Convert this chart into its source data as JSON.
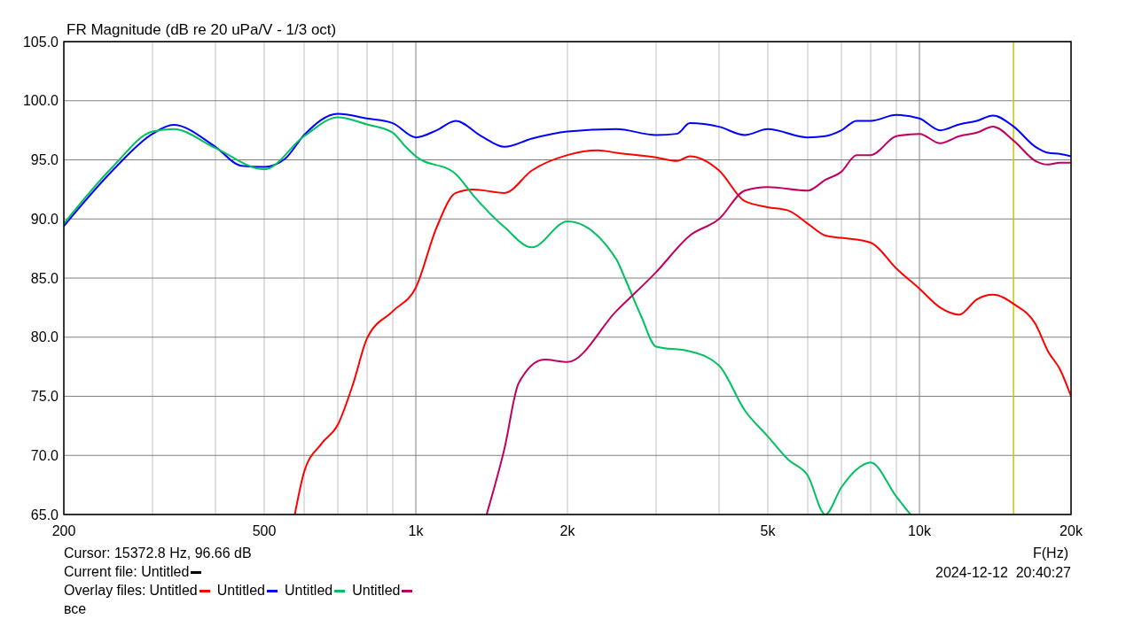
{
  "chart_data": {
    "type": "line",
    "title": "FR Magnitude (dB re 20 uPa/V - 1/3 oct)",
    "xlabel": "F(Hz)",
    "log": "x",
    "grid": true,
    "legend": "bottom",
    "legend_title": "Overlay files:",
    "line_style": "solid",
    "marker": "none",
    "xlim": [
      200,
      20000
    ],
    "xticks": [
      200,
      {
        "value": 300,
        "label": null
      },
      {
        "value": 400,
        "label": null
      },
      500,
      {
        "value": 600,
        "label": null
      },
      {
        "value": 700,
        "label": null
      },
      {
        "value": 800,
        "label": null
      },
      {
        "value": 900,
        "label": null
      },
      {
        "value": 1000,
        "label": "1k"
      },
      {
        "value": 2000,
        "label": "2k"
      },
      {
        "value": 3000,
        "label": null
      },
      {
        "value": 4000,
        "label": null
      },
      {
        "value": 5000,
        "label": "5k"
      },
      {
        "value": 6000,
        "label": null
      },
      {
        "value": 7000,
        "label": null
      },
      {
        "value": 8000,
        "label": null
      },
      {
        "value": 9000,
        "label": null
      },
      {
        "value": 10000,
        "label": "10k"
      },
      {
        "value": 20000,
        "label": "20k"
      }
    ],
    "ylim": [
      65,
      105
    ],
    "yticks": [
      {
        "value": 65,
        "label": "65.0"
      },
      {
        "value": 70,
        "label": "70.0"
      },
      {
        "value": 75,
        "label": "75.0"
      },
      {
        "value": 80,
        "label": "80.0"
      },
      {
        "value": 85,
        "label": "85.0"
      },
      {
        "value": 90,
        "label": "90.0"
      },
      {
        "value": 95,
        "label": "95.0"
      },
      {
        "value": 100,
        "label": "100.0"
      },
      {
        "value": 105,
        "label": "105.0"
      }
    ],
    "ref_lines": [
      {
        "axis": "x",
        "value": 15372.8,
        "color": "#c8c800"
      }
    ],
    "annotations": [
      "Cursor: 15372.8 Hz, 96.66 dB",
      "Current file: Untitled",
      "2024-12-12  20:40:27",
      "все"
    ],
    "series": [
      {
        "name": "Untitled",
        "color": "#ff0000",
        "x": [
          575,
          600,
          650,
          700,
          750,
          800,
          900,
          1000,
          1100,
          1200,
          1300,
          1500,
          1700,
          2000,
          2300,
          2500,
          3000,
          3300,
          3500,
          4000,
          4500,
          5000,
          5500,
          6000,
          6500,
          7000,
          8000,
          9000,
          10000,
          11000,
          12000,
          13000,
          14000,
          15400,
          17000,
          18000,
          19000,
          20000
        ],
        "values": [
          65,
          68.6,
          71.0,
          72.6,
          76.0,
          79.9,
          82.2,
          84.2,
          89.3,
          92.2,
          92.5,
          92.2,
          94.1,
          95.4,
          95.8,
          95.6,
          95.2,
          94.9,
          95.3,
          94.1,
          91.5,
          91.0,
          90.7,
          89.6,
          88.6,
          88.4,
          88.0,
          85.8,
          84.1,
          82.5,
          81.9,
          83.2,
          83.6,
          82.8,
          81.1,
          78.8,
          77.3,
          75.0
        ]
      },
      {
        "name": "Untitled",
        "color": "#0000ff",
        "x": [
          200,
          250,
          300,
          330,
          400,
          450,
          500,
          550,
          600,
          700,
          800,
          900,
          1000,
          1100,
          1200,
          1350,
          1500,
          1700,
          2000,
          2500,
          3000,
          3300,
          3500,
          4000,
          4500,
          5000,
          6000,
          6500,
          7000,
          7500,
          8000,
          9000,
          10000,
          11000,
          12000,
          13000,
          14000,
          15400,
          17000,
          18000,
          19000,
          20000
        ],
        "values": [
          89.4,
          94.1,
          97.2,
          97.95,
          96.1,
          94.5,
          94.4,
          95.1,
          97.1,
          98.9,
          98.5,
          98.1,
          96.9,
          97.5,
          98.3,
          97.0,
          96.1,
          96.8,
          97.4,
          97.6,
          97.1,
          97.2,
          98.1,
          97.8,
          97.1,
          97.6,
          96.9,
          97.0,
          97.5,
          98.3,
          98.3,
          98.8,
          98.5,
          97.5,
          98.0,
          98.3,
          98.75,
          97.8,
          96.1,
          95.6,
          95.5,
          95.3
        ]
      },
      {
        "name": "Untitled",
        "color": "#00c060",
        "x": [
          200,
          250,
          300,
          330,
          400,
          500,
          600,
          700,
          800,
          900,
          950,
          1000,
          1200,
          1300,
          1500,
          1700,
          2000,
          2500,
          2600,
          2800,
          3000,
          3500,
          4000,
          4500,
          5000,
          5500,
          6000,
          6500,
          7000,
          7500,
          8000,
          9000,
          9600
        ],
        "values": [
          89.6,
          94.4,
          97.4,
          97.6,
          96.0,
          94.2,
          97.0,
          98.6,
          98.0,
          97.3,
          96.2,
          95.3,
          93.8,
          92.0,
          89.3,
          87.6,
          89.8,
          86.6,
          85.0,
          81.8,
          79.2,
          78.8,
          77.6,
          73.8,
          71.6,
          69.6,
          68.3,
          65,
          67.3,
          68.8,
          69.4,
          66.5,
          65
        ]
      },
      {
        "name": "Untitled",
        "color": "#c00060",
        "x": [
          1382,
          1500,
          1600,
          1800,
          2000,
          2500,
          3000,
          3500,
          4000,
          4500,
          5000,
          6000,
          6500,
          7000,
          7500,
          8000,
          9000,
          10000,
          11000,
          12000,
          13000,
          14000,
          15400,
          17000,
          18000,
          19000,
          20000
        ],
        "values": [
          65,
          70.6,
          76.1,
          78.1,
          77.9,
          82.2,
          85.5,
          88.6,
          90.0,
          92.4,
          92.7,
          92.4,
          93.3,
          94.0,
          95.4,
          95.4,
          97.0,
          97.2,
          96.4,
          97.0,
          97.3,
          97.8,
          96.6,
          94.9,
          94.6,
          94.75,
          94.75
        ]
      }
    ]
  }
}
